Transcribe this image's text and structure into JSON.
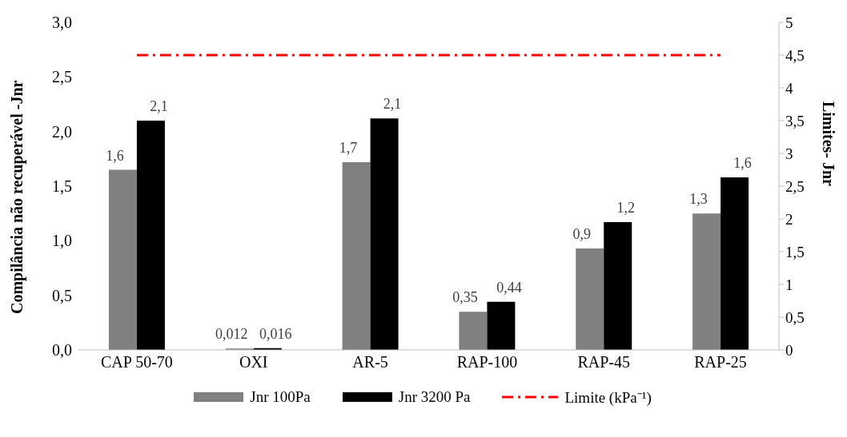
{
  "chart_data": {
    "type": "bar",
    "ylabel": "Compilância não recuperável -Jnr",
    "y2label": "Limites- Jnr",
    "categories": [
      "CAP 50-70",
      "OXI",
      "AR-5",
      "RAP-100",
      "RAP-45",
      "RAP-25"
    ],
    "series": [
      {
        "name": "Jnr 100Pa",
        "color": "#808080",
        "values": [
          1.65,
          0.012,
          1.72,
          0.35,
          0.93,
          1.25
        ],
        "value_labels": [
          "1,6",
          "0,012",
          "1,7",
          "0,35",
          "0,9",
          "1,3"
        ]
      },
      {
        "name": "Jnr 3200 Pa",
        "color": "#000000",
        "values": [
          2.1,
          0.016,
          2.12,
          0.44,
          1.17,
          1.58
        ],
        "value_labels": [
          "2,1",
          "0,016",
          "2,1",
          "0,44",
          "1,2",
          "1,6"
        ]
      },
      {
        "name": "Limite (kPa⁻¹)",
        "type": "line",
        "axis": "y2",
        "color": "#ff0000",
        "line_style": "dashed",
        "values": [
          4.5,
          4.5,
          4.5,
          4.5,
          4.5,
          4.5
        ]
      }
    ],
    "ylim": [
      0,
      3
    ],
    "yticks": [
      {
        "value": 0,
        "label": "0,0"
      },
      {
        "value": 0.5,
        "label": "0,5"
      },
      {
        "value": 1,
        "label": "1,0"
      },
      {
        "value": 1.5,
        "label": "1,5"
      },
      {
        "value": 2,
        "label": "2,0"
      },
      {
        "value": 2.5,
        "label": "2,5"
      },
      {
        "value": 3,
        "label": "3,0"
      }
    ],
    "y2lim": [
      0,
      5
    ],
    "y2ticks": [
      0,
      {
        "value": 0.5,
        "label": "0,5"
      },
      1,
      {
        "value": 1.5,
        "label": "1,5"
      },
      2,
      {
        "value": 2.5,
        "label": "2,5"
      },
      3,
      {
        "value": 3.5,
        "label": "3,5"
      },
      4,
      {
        "value": 4.5,
        "label": "4,5"
      },
      5
    ],
    "grid": false,
    "legend": "bottom"
  }
}
